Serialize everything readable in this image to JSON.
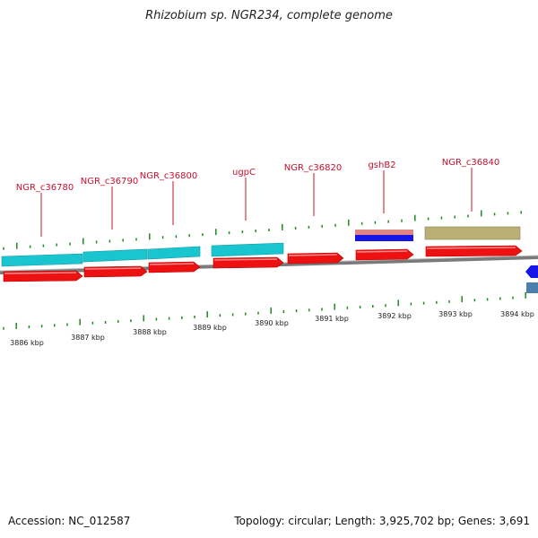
{
  "title": "Rhizobium sp. NGR234, complete genome",
  "footer": {
    "accession": "Accession: NC_012587",
    "stats": "Topology: circular; Length: 3,925,702 bp; Genes: 3,691"
  },
  "colors": {
    "cds": "#ee1111",
    "gene_teal": "#19c6cf",
    "gene_pink": "#e08585",
    "gene_blue": "#1515e8",
    "gene_khaki": "#b9ae74",
    "backbone": "#7a7a7a",
    "tick": "#1e8a1e",
    "label": "#c8102e"
  },
  "gene_labels": [
    "NGR_c36780",
    "NGR_c36790",
    "NGR_c36800",
    "ugpC",
    "NGR_c36820",
    "gshB2",
    "NGR_c36840"
  ],
  "kbp_labels": [
    "3886 kbp",
    "3887 kbp",
    "3888 kbp",
    "3889 kbp",
    "3890 kbp",
    "3891 kbp",
    "3892 kbp",
    "3893 kbp",
    "3894 kbp"
  ]
}
